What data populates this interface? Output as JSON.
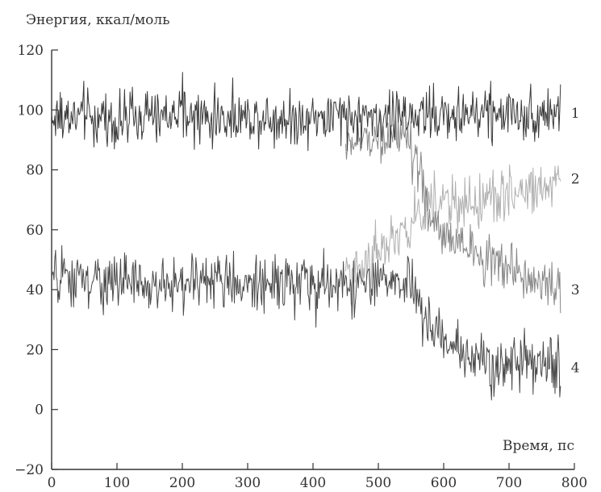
{
  "chart_data": {
    "type": "line",
    "ylabel": "Энергия, ккал/моль",
    "xlabel": "Время, пс",
    "xlim": [
      0,
      800
    ],
    "ylim": [
      -20,
      120
    ],
    "x_ticks": [
      "0",
      "100",
      "200",
      "300",
      "400",
      "500",
      "600",
      "700",
      "800"
    ],
    "y_ticks": [
      "-20",
      "0",
      "20",
      "40",
      "60",
      "80",
      "100",
      "120"
    ],
    "grid": false,
    "legend": "direct labels at right end of each series",
    "series": [
      {
        "name": "1",
        "color": "#3a3a3a",
        "x": [
          0,
          50,
          100,
          150,
          200,
          250,
          300,
          350,
          400,
          450,
          500,
          550,
          600,
          650,
          700,
          750,
          780
        ],
        "values": [
          97,
          98,
          96,
          97,
          98,
          97,
          98,
          97,
          98,
          97,
          98,
          98,
          98,
          99,
          99,
          99,
          99
        ],
        "noise": 6
      },
      {
        "name": "2",
        "color": "#b0b0b0",
        "x": [
          450,
          500,
          540,
          560,
          580,
          600,
          650,
          700,
          750,
          780
        ],
        "values": [
          45,
          52,
          58,
          64,
          70,
          68,
          68,
          72,
          74,
          77
        ],
        "noise": 6
      },
      {
        "name": "3",
        "color": "#888888",
        "x": [
          450,
          500,
          540,
          560,
          580,
          600,
          650,
          700,
          750,
          780
        ],
        "values": [
          88,
          92,
          90,
          80,
          65,
          58,
          52,
          47,
          42,
          40
        ],
        "noise": 5
      },
      {
        "name": "4",
        "color": "#4a4a4a",
        "x": [
          0,
          50,
          100,
          150,
          200,
          250,
          300,
          350,
          400,
          450,
          500,
          550,
          570,
          600,
          650,
          700,
          750,
          780
        ],
        "values": [
          44,
          42,
          43,
          41,
          42,
          43,
          42,
          43,
          41,
          42,
          42,
          42,
          30,
          22,
          17,
          15,
          14,
          14
        ],
        "noise": 6
      }
    ]
  }
}
